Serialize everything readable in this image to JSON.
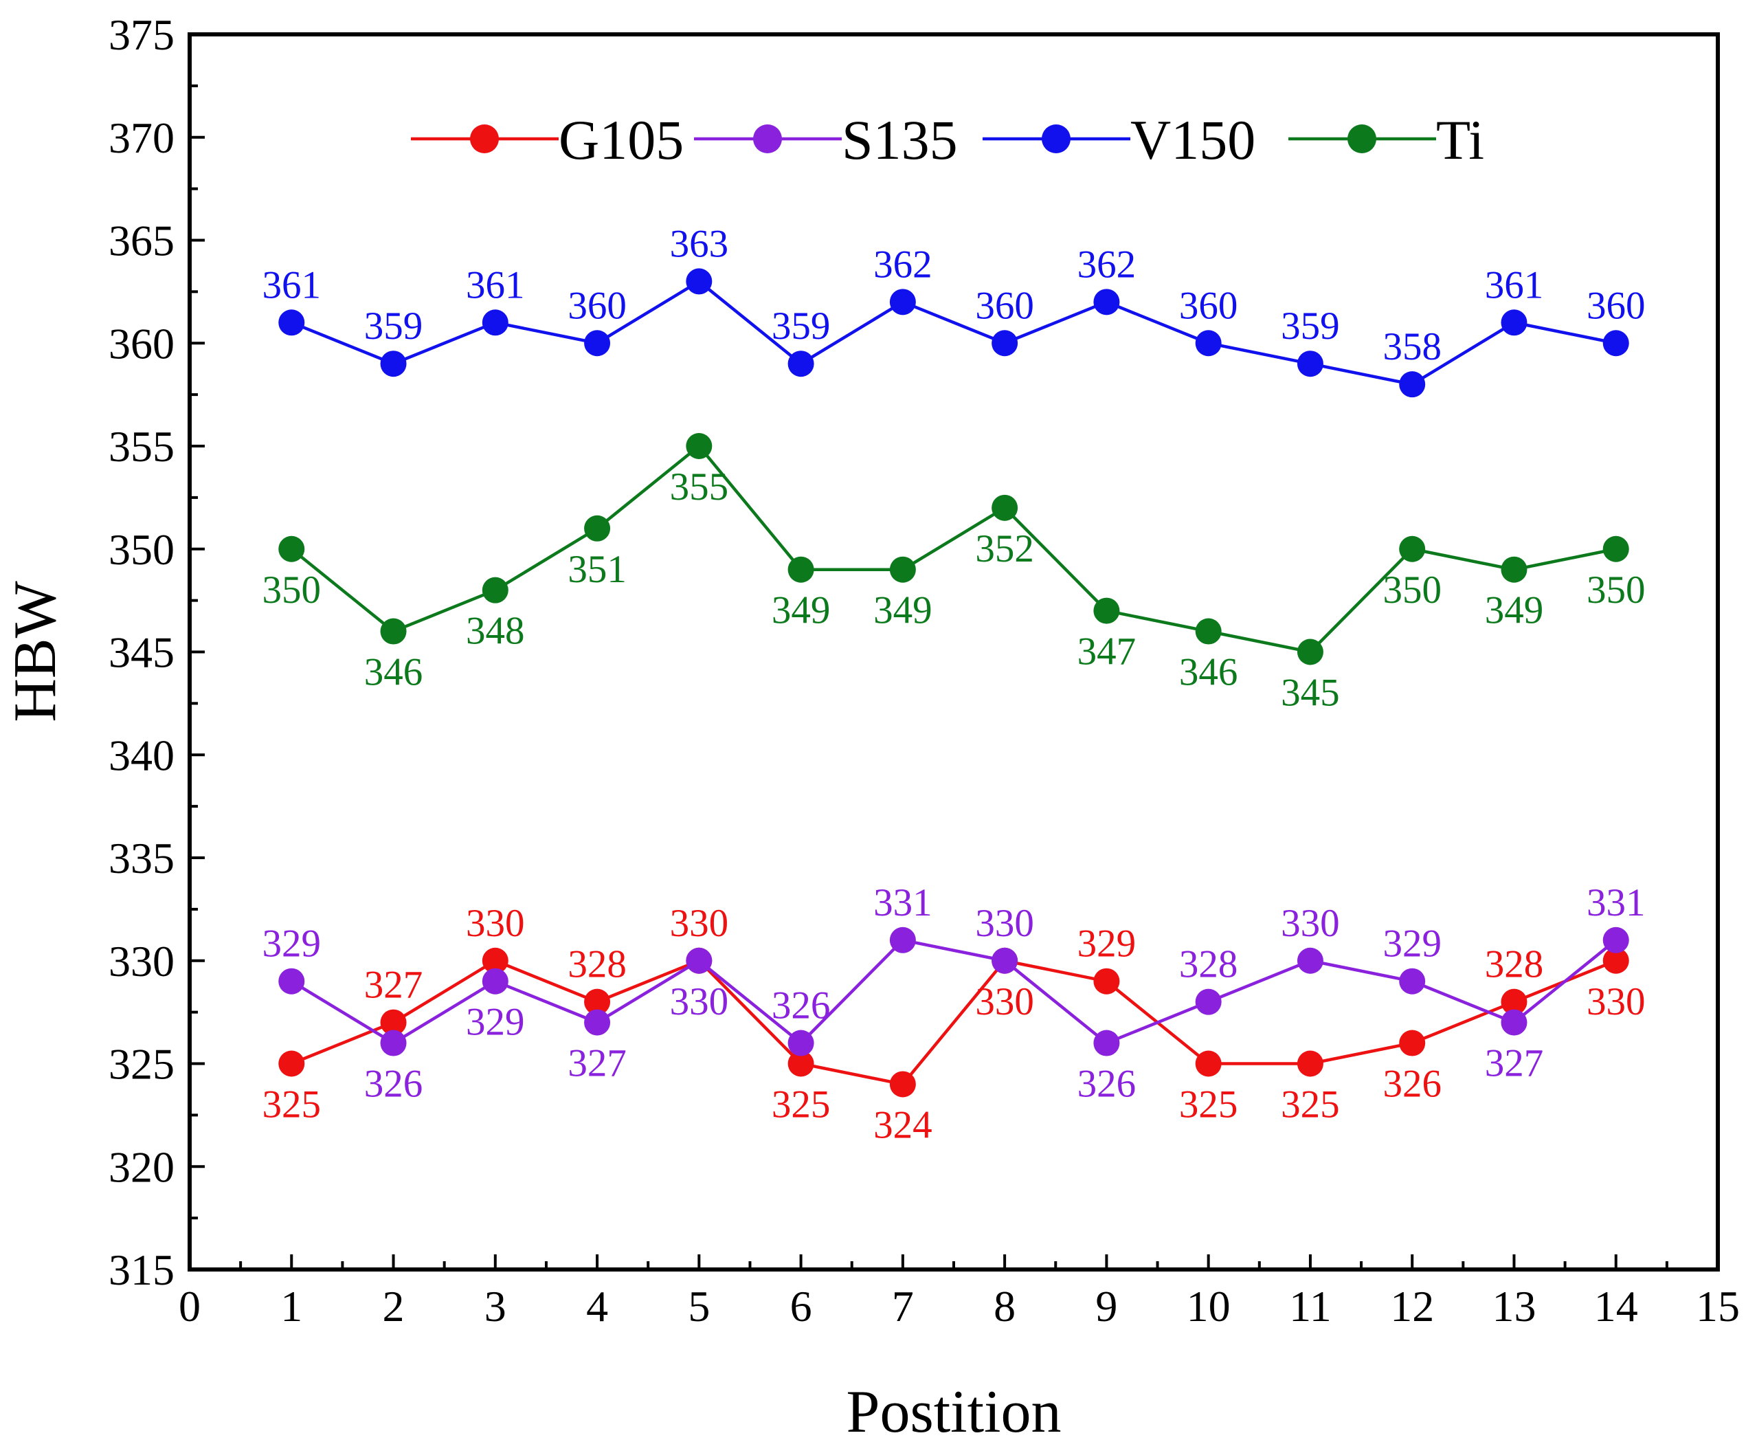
{
  "chart_data": {
    "type": "line",
    "title": "",
    "xlabel": "Postition",
    "ylabel": "HBW",
    "xlim": [
      0,
      15
    ],
    "ylim": [
      315,
      375
    ],
    "x_ticks": [
      0,
      1,
      2,
      3,
      4,
      5,
      6,
      7,
      8,
      9,
      10,
      11,
      12,
      13,
      14,
      15
    ],
    "y_ticks": [
      315,
      320,
      325,
      330,
      335,
      340,
      345,
      350,
      355,
      360,
      365,
      370,
      375
    ],
    "x": [
      1,
      2,
      3,
      4,
      5,
      6,
      7,
      8,
      9,
      10,
      11,
      12,
      13,
      14
    ],
    "grid": false,
    "legend_position": "top",
    "series": [
      {
        "name": "G105",
        "color": "#ee1111",
        "values": [
          325,
          327,
          330,
          328,
          330,
          325,
          324,
          330,
          329,
          325,
          325,
          326,
          328,
          330
        ],
        "labels": [
          "325",
          "327",
          "330",
          "328",
          "330",
          "325",
          "324",
          "330",
          "329",
          "325",
          "325",
          "326",
          "328",
          "330"
        ],
        "label_side": [
          "below",
          "above",
          "above",
          "above",
          "above",
          "below",
          "below",
          "below",
          "above",
          "below",
          "below",
          "below",
          "above",
          "below"
        ]
      },
      {
        "name": "S135",
        "color": "#8a22dd",
        "values": [
          329,
          326,
          329,
          327,
          330,
          326,
          331,
          330,
          326,
          328,
          330,
          329,
          327,
          331
        ],
        "labels": [
          "329",
          "326",
          "329",
          "327",
          "330",
          "326",
          "331",
          "330",
          "326",
          "328",
          "330",
          "329",
          "327",
          "331"
        ],
        "label_side": [
          "above",
          "below",
          "below",
          "below",
          "below",
          "above",
          "above",
          "above",
          "below",
          "above",
          "above",
          "above",
          "below",
          "above"
        ]
      },
      {
        "name": "V150",
        "color": "#1111ee",
        "values": [
          361,
          359,
          361,
          360,
          363,
          359,
          362,
          360,
          362,
          360,
          359,
          358,
          361,
          360
        ],
        "labels": [
          "361",
          "359",
          "361",
          "360",
          "363",
          "359",
          "362",
          "360",
          "362",
          "360",
          "359",
          "358",
          "361",
          "360"
        ],
        "label_side": [
          "above",
          "above",
          "above",
          "above",
          "above",
          "above",
          "above",
          "above",
          "above",
          "above",
          "above",
          "above",
          "above",
          "above"
        ]
      },
      {
        "name": "Ti",
        "color": "#0c7a1c",
        "values": [
          350,
          346,
          348,
          351,
          355,
          349,
          349,
          352,
          347,
          346,
          345,
          350,
          349,
          350
        ],
        "labels": [
          "350",
          "346",
          "348",
          "351",
          "355",
          "349",
          "349",
          "352",
          "347",
          "346",
          "345",
          "350",
          "349",
          "350"
        ],
        "label_side": [
          "below",
          "below",
          "below",
          "below",
          "below",
          "below",
          "below",
          "below",
          "below",
          "below",
          "below",
          "below",
          "below",
          "below"
        ]
      }
    ]
  }
}
